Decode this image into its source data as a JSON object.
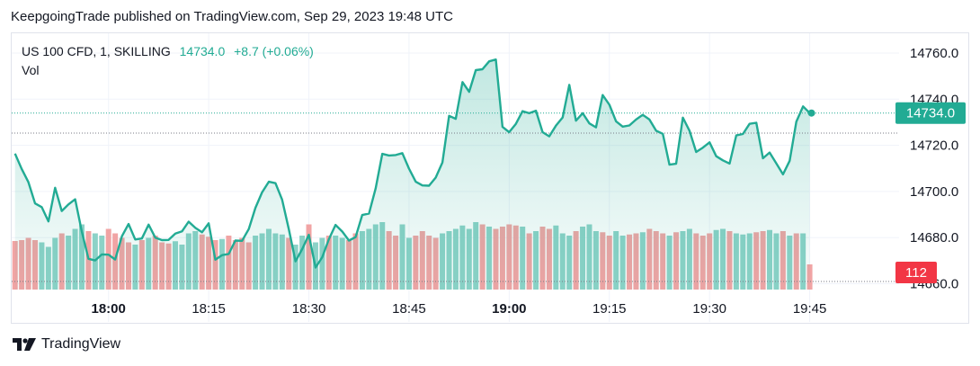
{
  "header": {
    "published": "KeepgoingTrade published on TradingView.com, Sep 29, 2023 19:48 UTC"
  },
  "legend": {
    "symbol": "US 100 CFD, 1, SKILLING",
    "price": "14734.0",
    "change": "+8.7 (+0.06%)",
    "volume_label": "Vol"
  },
  "price_tag": "14734.0",
  "volume_tag": "112",
  "footer": {
    "brand": "TradingView"
  },
  "colors": {
    "line": "#22ab94",
    "up_volume": "#7fcdc1",
    "down_volume": "#ef9a9a",
    "price_tag_bg": "#22ab94",
    "volume_tag_bg": "#f23645",
    "grid": "#f0f3fa"
  },
  "chart_data": {
    "type": "area",
    "title": "US 100 CFD, 1, SKILLING",
    "xlabel": "",
    "ylabel": "",
    "ylim": [
      14655,
      14766
    ],
    "y_ticks": [
      "14760.0",
      "14740.0",
      "14720.0",
      "14700.0",
      "14680.0",
      "14660.0"
    ],
    "y_tick_values": [
      14760,
      14740,
      14720,
      14700,
      14680,
      14660
    ],
    "x_ticks": [
      {
        "label": "18:00",
        "minute": 1080,
        "bold": true
      },
      {
        "label": "18:15",
        "minute": 1095,
        "bold": false
      },
      {
        "label": "18:30",
        "minute": 1110,
        "bold": false
      },
      {
        "label": "18:45",
        "minute": 1125,
        "bold": false
      },
      {
        "label": "19:00",
        "minute": 1140,
        "bold": true
      },
      {
        "label": "19:15",
        "minute": 1155,
        "bold": false
      },
      {
        "label": "19:30",
        "minute": 1170,
        "bold": false
      },
      {
        "label": "19:45",
        "minute": 1185,
        "bold": false
      }
    ],
    "x_start_minute": 1066,
    "last_price": 14734.0,
    "prev_close_ref": 14725.3,
    "series": [
      {
        "name": "Price",
        "values": [
          14716.4,
          14709.8,
          14704.0,
          14694.8,
          14693.2,
          14687.0,
          14701.6,
          14691.5,
          14694.4,
          14696.6,
          14682.6,
          14670.8,
          14670.1,
          14672.7,
          14672.6,
          14670.5,
          14680.6,
          14685.9,
          14679.2,
          14679.6,
          14685.6,
          14680.0,
          14678.9,
          14679.0,
          14681.7,
          14682.7,
          14686.9,
          14684.2,
          14682.3,
          14686.2,
          14670.4,
          14672.4,
          14672.9,
          14678.7,
          14678.6,
          14683.7,
          14692.9,
          14699.6,
          14704.2,
          14703.6,
          14696.4,
          14683.7,
          14669.7,
          14675.0,
          14681.2,
          14667.0,
          14671.5,
          14679.3,
          14685.5,
          14682.6,
          14678.7,
          14680.2,
          14689.8,
          14690.4,
          14701.3,
          14716.3,
          14715.6,
          14715.8,
          14716.6,
          14709.9,
          14704.2,
          14702.6,
          14702.5,
          14706.0,
          14712.6,
          14732.8,
          14731.5,
          14747.4,
          14743.2,
          14752.6,
          14753.0,
          14756.4,
          14757.2,
          14728.0,
          14725.7,
          14729.3,
          14734.8,
          14733.9,
          14735.0,
          14725.7,
          14723.9,
          14728.5,
          14732.1,
          14746.2,
          14730.7,
          14733.9,
          14729.5,
          14727.8,
          14741.8,
          14737.6,
          14730.4,
          14728.1,
          14728.6,
          14731.2,
          14733.2,
          14731.2,
          14726.3,
          14725.0,
          14711.6,
          14712.0,
          14732.0,
          14726.3,
          14717.1,
          14719.0,
          14721.3,
          14715.3,
          14713.5,
          14712.1,
          14724.3,
          14724.9,
          14729.3,
          14729.8,
          14714.4,
          14716.9,
          14712.2,
          14707.4,
          14713.3,
          14730.2,
          14736.9,
          14734.0
        ]
      },
      {
        "name": "Vol",
        "values": [
          216,
          220,
          230,
          220,
          210,
          190,
          230,
          250,
          240,
          270,
          290,
          260,
          250,
          240,
          270,
          250,
          230,
          210,
          200,
          220,
          230,
          240,
          210,
          205,
          215,
          200,
          250,
          260,
          245,
          235,
          220,
          225,
          240,
          220,
          230,
          210,
          240,
          250,
          270,
          250,
          245,
          230,
          200,
          240,
          290,
          210,
          230,
          240,
          240,
          230,
          220,
          250,
          260,
          270,
          290,
          300,
          260,
          240,
          290,
          230,
          240,
          260,
          240,
          230,
          250,
          260,
          270,
          285,
          270,
          300,
          290,
          280,
          270,
          280,
          290,
          285,
          280,
          250,
          260,
          280,
          270,
          285,
          250,
          240,
          260,
          280,
          290,
          260,
          255,
          240,
          260,
          240,
          245,
          250,
          255,
          270,
          260,
          250,
          240,
          255,
          260,
          270,
          250,
          240,
          250,
          265,
          270,
          260,
          250,
          245,
          250,
          255,
          260,
          265,
          250,
          260,
          240,
          250,
          250,
          112
        ]
      }
    ],
    "volume_direction": [
      "d",
      "d",
      "d",
      "d",
      "u",
      "u",
      "u",
      "d",
      "u",
      "u",
      "u",
      "d",
      "u",
      "u",
      "d",
      "d",
      "d",
      "d",
      "u",
      "d",
      "u",
      "d",
      "d",
      "d",
      "u",
      "u",
      "u",
      "u",
      "d",
      "d",
      "d",
      "u",
      "d",
      "d",
      "d",
      "d",
      "u",
      "u",
      "u",
      "u",
      "u",
      "d",
      "u",
      "u",
      "d",
      "u",
      "u",
      "d",
      "u",
      "u",
      "d",
      "d",
      "u",
      "u",
      "u",
      "u",
      "d",
      "d",
      "u",
      "u",
      "d",
      "d",
      "d",
      "d",
      "u",
      "u",
      "u",
      "u",
      "u",
      "u",
      "d",
      "u",
      "d",
      "d",
      "d",
      "d",
      "u",
      "d",
      "u",
      "d",
      "d",
      "u",
      "u",
      "u",
      "d",
      "u",
      "u",
      "u",
      "d",
      "d",
      "u",
      "u",
      "d",
      "d",
      "u",
      "d",
      "d",
      "d",
      "u",
      "d",
      "u",
      "u",
      "d",
      "d",
      "d",
      "u",
      "u",
      "d",
      "u",
      "u",
      "u",
      "d",
      "d",
      "u",
      "u",
      "d",
      "u",
      "d",
      "u",
      "d"
    ]
  }
}
